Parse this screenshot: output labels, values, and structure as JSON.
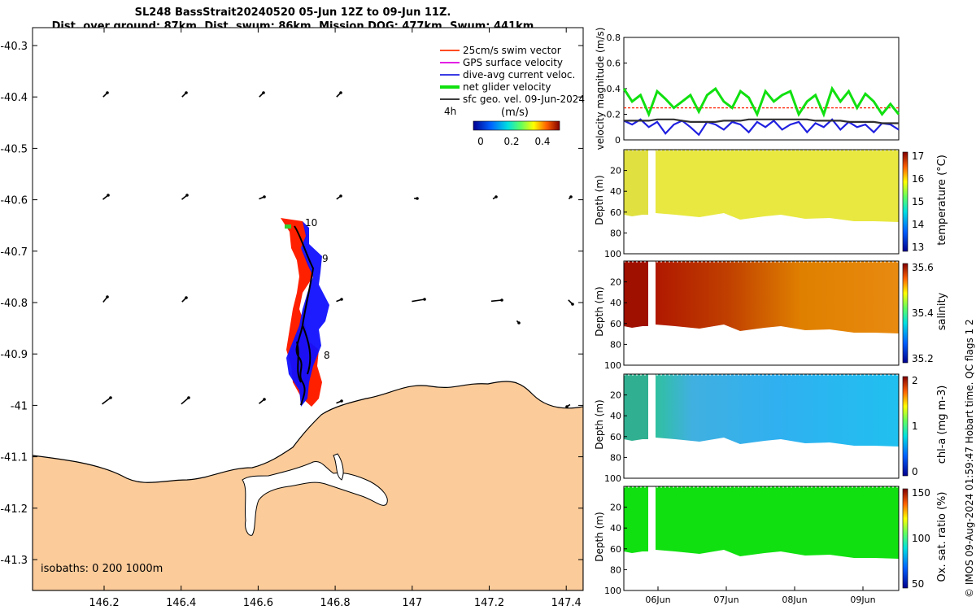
{
  "title": {
    "line1": "SL248 BassStrait20240520 05-Jun 12Z to 09-Jun 11Z.",
    "line2": "Dist. over ground: 87km. Dist. swum: 86km. Mission DOG: 477km. Swum: 441km"
  },
  "legend": {
    "items": [
      {
        "label": "25cm/s swim vector",
        "color": "#ff3300"
      },
      {
        "label": "GPS surface velocity",
        "color": "#e000e0"
      },
      {
        "label": "dive-avg current veloc.",
        "color": "#2020e0"
      },
      {
        "label": "net glider velocity",
        "color": "#10e010"
      },
      {
        "label": "sfc geo. vel. 09-Jun-2024",
        "color": "#202020"
      }
    ],
    "interval": "4h"
  },
  "colorbar": {
    "title": "(m/s)",
    "ticks": [
      "0",
      "0.2",
      "0.4"
    ]
  },
  "isobaths": "isobaths: 0   200  1000m",
  "map": {
    "lat_ticks": [
      "-40.3",
      "-40.4",
      "-40.5",
      "-40.6",
      "-40.7",
      "-40.8",
      "-40.9",
      "-41",
      "-41.1",
      "-41.2",
      "-41.3"
    ],
    "lon_ticks": [
      "146.2",
      "146.4",
      "146.6",
      "146.8",
      "147",
      "147.2",
      "147.4"
    ],
    "track_labels": [
      "10",
      "9",
      "8"
    ],
    "colors": {
      "land": "#fbcb9a",
      "glider_red": "#ff2000",
      "glider_blue": "#1010ff"
    }
  },
  "chart_data": [
    {
      "type": "line",
      "title": "",
      "ylabel": "velocity magnitude (m/s)",
      "ylim": [
        0,
        0.8
      ],
      "yticks": [
        "0",
        "0.2",
        "0.4",
        "0.6",
        "0.8"
      ],
      "series": [
        {
          "name": "net glider velocity",
          "color": "#10e010",
          "values": [
            0.4,
            0.3,
            0.35,
            0.2,
            0.38,
            0.32,
            0.25,
            0.3,
            0.35,
            0.22,
            0.35,
            0.4,
            0.3,
            0.25,
            0.38,
            0.33,
            0.2,
            0.38,
            0.3,
            0.35,
            0.38,
            0.2,
            0.3,
            0.35,
            0.2,
            0.4,
            0.3,
            0.38,
            0.25,
            0.36,
            0.3,
            0.2,
            0.28,
            0.2
          ]
        },
        {
          "name": "dive-avg current veloc.",
          "color": "#2020e0",
          "values": [
            0.15,
            0.12,
            0.16,
            0.1,
            0.14,
            0.05,
            0.12,
            0.15,
            0.1,
            0.04,
            0.14,
            0.12,
            0.08,
            0.14,
            0.12,
            0.06,
            0.14,
            0.1,
            0.15,
            0.08,
            0.12,
            0.14,
            0.06,
            0.13,
            0.1,
            0.16,
            0.08,
            0.14,
            0.1,
            0.12,
            0.06,
            0.13,
            0.12,
            0.08
          ]
        },
        {
          "name": "sfc geo. vel.",
          "color": "#303030",
          "values": [
            0.15,
            0.15,
            0.15,
            0.15,
            0.16,
            0.16,
            0.16,
            0.15,
            0.14,
            0.14,
            0.14,
            0.14,
            0.15,
            0.15,
            0.15,
            0.16,
            0.16,
            0.16,
            0.16,
            0.16,
            0.16,
            0.16,
            0.16,
            0.15,
            0.15,
            0.15,
            0.15,
            0.14,
            0.14,
            0.14,
            0.14,
            0.13,
            0.13,
            0.13
          ]
        },
        {
          "name": "25cm/s swim",
          "color": "#ff2000",
          "values": [
            0.25,
            0.25,
            0.25,
            0.25,
            0.25,
            0.25,
            0.25,
            0.25,
            0.25,
            0.25,
            0.25,
            0.25,
            0.25,
            0.25,
            0.25,
            0.25,
            0.25,
            0.25,
            0.25,
            0.25,
            0.25,
            0.25,
            0.25,
            0.25,
            0.25,
            0.25,
            0.25,
            0.25,
            0.25,
            0.25,
            0.25,
            0.25,
            0.25,
            0.25
          ]
        }
      ]
    },
    {
      "type": "heatmap",
      "ylabel": "Depth (m)",
      "clabel": "temperature (°C)",
      "cticks": [
        "13",
        "14",
        "15",
        "16",
        "17"
      ],
      "yticks": [
        "20",
        "40",
        "60",
        "80",
        "100"
      ],
      "value_typical": 15.6
    },
    {
      "type": "heatmap",
      "ylabel": "Depth (m)",
      "clabel": "salinity",
      "cticks": [
        "35.2",
        "35.4",
        "35.6"
      ],
      "yticks": [
        "20",
        "40",
        "60",
        "80",
        "100"
      ],
      "value_typical": 35.6
    },
    {
      "type": "heatmap",
      "ylabel": "Depth (m)",
      "clabel": "chl-a (mg m-3)",
      "cticks": [
        "0",
        "1",
        "2"
      ],
      "yticks": [
        "20",
        "40",
        "60",
        "80",
        "100"
      ],
      "value_typical": 0.8
    },
    {
      "type": "heatmap",
      "ylabel": "Depth (m)",
      "clabel": "Ox. sat. ratio (%)",
      "cticks": [
        "50",
        "100",
        "150"
      ],
      "yticks": [
        "20",
        "40",
        "60",
        "80",
        "100"
      ],
      "value_typical": 100
    }
  ],
  "time_ticks": [
    "06Jun",
    "07Jun",
    "08Jun",
    "09Jun"
  ],
  "footer": "© IMOS 09-Aug-2024 01:59:47 Hobart time. QC flags 1  2"
}
